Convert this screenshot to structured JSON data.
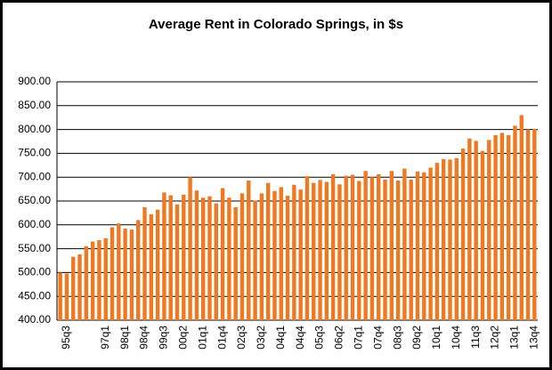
{
  "chart_data": {
    "type": "bar",
    "title": "Average Rent in Colorado Springs, in $s",
    "categories": [
      null,
      "95q3",
      null,
      null,
      null,
      null,
      null,
      "97q1",
      null,
      null,
      "98q1",
      null,
      null,
      "98q4",
      null,
      null,
      "99q3",
      null,
      null,
      "00q2",
      null,
      null,
      "01q1",
      null,
      null,
      "01q4",
      null,
      null,
      "02q3",
      null,
      null,
      "03q2",
      null,
      null,
      "04q1",
      null,
      null,
      "04q4",
      null,
      null,
      "05q3",
      null,
      null,
      "06q2",
      null,
      null,
      "07q1",
      null,
      null,
      "07q4",
      null,
      null,
      "08q3",
      null,
      null,
      "09q2",
      null,
      null,
      "10q1",
      null,
      null,
      "10q4",
      null,
      null,
      "11q3",
      null,
      null,
      "12q2",
      null,
      null,
      "13q1",
      null,
      null,
      "13q4"
    ],
    "values": [
      500,
      498,
      533,
      538,
      555,
      565,
      568,
      572,
      595,
      603,
      592,
      590,
      610,
      637,
      622,
      632,
      668,
      662,
      643,
      663,
      700,
      672,
      657,
      660,
      645,
      677,
      657,
      637,
      666,
      693,
      651,
      666,
      688,
      671,
      679,
      661,
      684,
      674,
      702,
      688,
      694,
      690,
      706,
      685,
      703,
      705,
      692,
      713,
      700,
      706,
      695,
      713,
      693,
      718,
      695,
      712,
      710,
      720,
      730,
      738,
      737,
      740,
      760,
      781,
      776,
      755,
      778,
      788,
      793,
      788,
      808,
      830,
      800,
      801
    ],
    "color": "#f07820",
    "ylim": [
      400,
      900
    ],
    "yticks": [
      {
        "value": 400,
        "label": "400.00"
      },
      {
        "value": 450,
        "label": "450.00"
      },
      {
        "value": 500,
        "label": "500.00"
      },
      {
        "value": 550,
        "label": "550.00"
      },
      {
        "value": 600,
        "label": "600.00"
      },
      {
        "value": 650,
        "label": "650.00"
      },
      {
        "value": 700,
        "label": "700.00"
      },
      {
        "value": 750,
        "label": "750.00"
      },
      {
        "value": 800,
        "label": "800.00"
      },
      {
        "value": 850,
        "label": "850.00"
      },
      {
        "value": 900,
        "label": "900.00"
      }
    ],
    "grid": true
  }
}
